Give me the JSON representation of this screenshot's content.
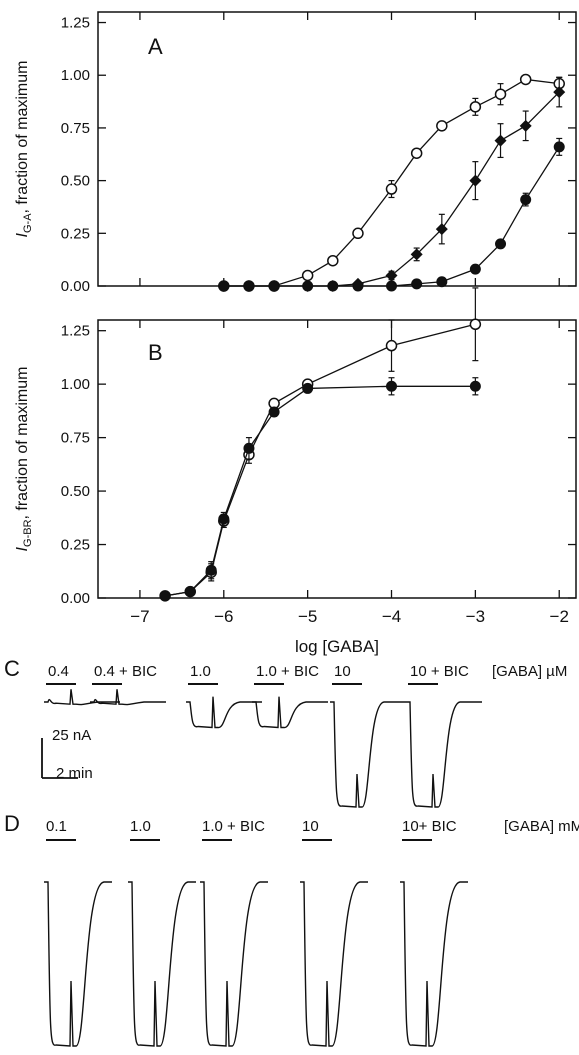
{
  "chart_data": [
    {
      "panel": "A",
      "type": "line",
      "ylabel": {
        "main": "I",
        "sub": "G-A",
        "rest": ", fraction of maximum"
      },
      "xlabel": "",
      "xlim": [
        -7.5,
        -1.8
      ],
      "ylim": [
        0,
        1.3
      ],
      "xticks": [
        -7,
        -6,
        -5,
        -4,
        -3,
        -2
      ],
      "xtick_labels": [
        "",
        "",
        "",
        "",
        "",
        ""
      ],
      "yticks": [
        0,
        0.25,
        0.5,
        0.75,
        1.0,
        1.25
      ],
      "ytick_labels": [
        "0.00",
        "0.25",
        "0.50",
        "0.75",
        "1.00",
        "1.25"
      ],
      "series": [
        {
          "marker": "open-circle",
          "x": [
            -6,
            -5.7,
            -5.4,
            -5,
            -4.7,
            -4.4,
            -4,
            -3.7,
            -3.4,
            -3,
            -2.7,
            -2.4,
            -2
          ],
          "y": [
            0,
            0,
            0,
            0.05,
            0.12,
            0.25,
            0.46,
            0.63,
            0.76,
            0.85,
            0.91,
            0.98,
            0.96
          ],
          "err": [
            0,
            0,
            0,
            0,
            0,
            0.02,
            0.04,
            0.02,
            0.02,
            0.04,
            0.05,
            0,
            0.03
          ]
        },
        {
          "marker": "filled-diamond",
          "x": [
            -6,
            -5.7,
            -5.4,
            -5,
            -4.7,
            -4.4,
            -4,
            -3.7,
            -3.4,
            -3,
            -2.7,
            -2.4,
            -2
          ],
          "y": [
            0,
            0,
            0,
            0,
            0,
            0.01,
            0.05,
            0.15,
            0.27,
            0.5,
            0.69,
            0.76,
            0.92
          ],
          "err": [
            0,
            0,
            0,
            0,
            0,
            0,
            0.02,
            0.03,
            0.07,
            0.09,
            0.08,
            0.07,
            0.07
          ]
        },
        {
          "marker": "filled-circle",
          "x": [
            -6,
            -5.7,
            -5.4,
            -5,
            -4.7,
            -4.4,
            -4,
            -3.7,
            -3.4,
            -3,
            -2.7,
            -2.4,
            -2
          ],
          "y": [
            0,
            0,
            0,
            0,
            0,
            0,
            0,
            0.01,
            0.02,
            0.08,
            0.2,
            0.41,
            0.66
          ],
          "err": [
            0,
            0,
            0,
            0,
            0,
            0,
            0,
            0,
            0,
            0,
            0,
            0.03,
            0.04
          ]
        }
      ]
    },
    {
      "panel": "B",
      "type": "line",
      "ylabel": {
        "main": "I",
        "sub": "G-BR",
        "rest": ", fraction of maximum"
      },
      "xlabel": "log [GABA]",
      "xlim": [
        -7.5,
        -1.8
      ],
      "ylim": [
        0,
        1.3
      ],
      "xticks": [
        -7,
        -6,
        -5,
        -4,
        -3,
        -2
      ],
      "xtick_labels": [
        "−7",
        "−6",
        "−5",
        "−4",
        "−3",
        "−2"
      ],
      "yticks": [
        0,
        0.25,
        0.5,
        0.75,
        1.0,
        1.25
      ],
      "ytick_labels": [
        "0.00",
        "0.25",
        "0.50",
        "0.75",
        "1.00",
        "1.25"
      ],
      "series": [
        {
          "marker": "open-circle",
          "x": [
            -6.7,
            -6.4,
            -6.15,
            -6,
            -5.7,
            -5.4,
            -5,
            -4,
            -3
          ],
          "y": [
            0.01,
            0.03,
            0.12,
            0.36,
            0.67,
            0.91,
            1.0,
            1.18,
            1.28
          ],
          "err": [
            0,
            0,
            0.04,
            0.03,
            0.04,
            0.02,
            0,
            0.12,
            0.17
          ]
        },
        {
          "marker": "filled-circle",
          "x": [
            -6.7,
            -6.4,
            -6.15,
            -6,
            -5.7,
            -5.4,
            -5,
            -4,
            -3
          ],
          "y": [
            0.01,
            0.03,
            0.13,
            0.37,
            0.7,
            0.87,
            0.98,
            0.99,
            0.99
          ],
          "err": [
            0,
            0,
            0.04,
            0.03,
            0.05,
            0.02,
            0,
            0.04,
            0.04
          ]
        }
      ]
    }
  ],
  "traces": {
    "C": {
      "label": "C",
      "unit_text": "[GABA] µM",
      "scale_current": "25 nA",
      "scale_time": "2 min",
      "items": [
        {
          "label": "0.4",
          "depth": 0.03,
          "spike": 0.15
        },
        {
          "label": "0.4 + BIC",
          "depth": 0.03,
          "spike": 0.15
        },
        {
          "label": "1.0",
          "depth": 0.25,
          "spike": 0.3
        },
        {
          "label": "1.0 + BIC",
          "depth": 0.25,
          "spike": 0.3
        },
        {
          "label": "10",
          "depth": 1.0,
          "spike": 0.32
        },
        {
          "label": "10 + BIC",
          "depth": 1.0,
          "spike": 0.32
        }
      ]
    },
    "D": {
      "label": "D",
      "unit_text": "[GABA] mM",
      "items": [
        {
          "label": "0.1",
          "depth": 1.0,
          "spike": 0.4
        },
        {
          "label": "1.0",
          "depth": 1.0,
          "spike": 0.4
        },
        {
          "label": "1.0 + BIC",
          "depth": 1.0,
          "spike": 0.4
        },
        {
          "label": "10",
          "depth": 1.0,
          "spike": 0.4
        },
        {
          "label": "10+ BIC",
          "depth": 1.0,
          "spike": 0.4
        }
      ]
    }
  }
}
